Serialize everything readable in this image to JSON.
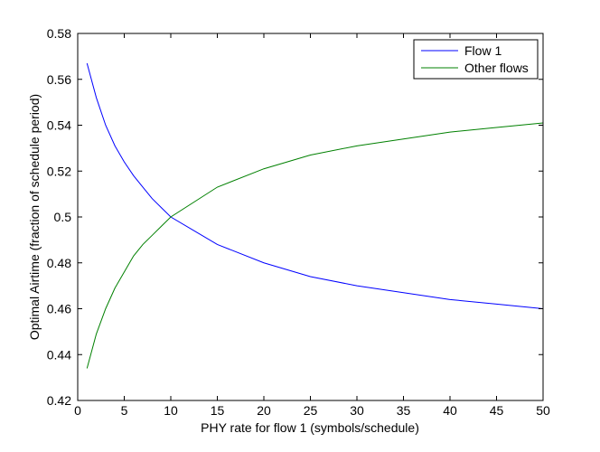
{
  "chart_data": {
    "type": "line",
    "xlabel": "PHY rate for flow 1 (symbols/schedule)",
    "ylabel": "Optimal Airtime (fraction of schedule period)",
    "xlim": [
      0,
      50
    ],
    "ylim": [
      0.42,
      0.58
    ],
    "xticks": [
      0,
      5,
      10,
      15,
      20,
      25,
      30,
      35,
      40,
      45,
      50
    ],
    "yticks": [
      0.42,
      0.44,
      0.46,
      0.48,
      0.5,
      0.52,
      0.54,
      0.56,
      0.58
    ],
    "xtick_labels": [
      "0",
      "5",
      "10",
      "15",
      "20",
      "25",
      "30",
      "35",
      "40",
      "45",
      "50"
    ],
    "ytick_labels": [
      "0.42",
      "0.44",
      "0.46",
      "0.48",
      "0.5",
      "0.52",
      "0.54",
      "0.56",
      "0.58"
    ],
    "grid": false,
    "legend_position": "top-right",
    "series": [
      {
        "name": "Flow 1",
        "color": "#0000ff",
        "x": [
          1,
          2,
          3,
          4,
          5,
          6,
          7,
          8,
          9,
          10,
          15,
          20,
          25,
          30,
          35,
          40,
          45,
          50
        ],
        "values": [
          0.567,
          0.552,
          0.54,
          0.531,
          0.524,
          0.518,
          0.513,
          0.508,
          0.504,
          0.5,
          0.488,
          0.48,
          0.474,
          0.47,
          0.467,
          0.464,
          0.462,
          0.46
        ]
      },
      {
        "name": "Other flows",
        "color": "#008000",
        "x": [
          1,
          2,
          3,
          4,
          5,
          6,
          7,
          8,
          9,
          10,
          15,
          20,
          25,
          30,
          35,
          40,
          45,
          50
        ],
        "values": [
          0.434,
          0.449,
          0.46,
          0.469,
          0.476,
          0.483,
          0.488,
          0.492,
          0.496,
          0.5,
          0.513,
          0.521,
          0.527,
          0.531,
          0.534,
          0.537,
          0.539,
          0.541
        ]
      }
    ]
  }
}
